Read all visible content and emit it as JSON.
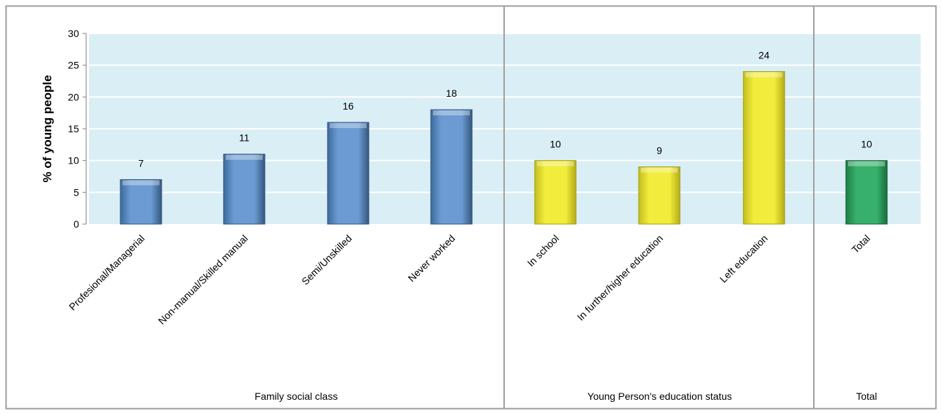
{
  "chart_data": {
    "type": "bar",
    "ylabel": "% of young people",
    "ylim": [
      0,
      30
    ],
    "yticks": [
      0,
      5,
      10,
      15,
      20,
      25,
      30
    ],
    "grid": true,
    "categories": [
      "Profesional/Managerial",
      "Non-manual/Skilled manual",
      "Semi/Unskilled",
      "Never worked",
      "In school",
      "In further/higher education",
      "Left education",
      "Total"
    ],
    "values": [
      7,
      11,
      16,
      18,
      10,
      9,
      24,
      10
    ],
    "data_labels": [
      "7",
      "11",
      "16",
      "18",
      "10",
      "9",
      "24",
      "10"
    ],
    "groups": [
      {
        "label": "Family social class",
        "categories": [
          0,
          1,
          2,
          3
        ],
        "color": "#5b8cc8"
      },
      {
        "label": "Young Person's education status",
        "categories": [
          4,
          5,
          6
        ],
        "color": "#ece634"
      },
      {
        "label": "Total",
        "categories": [
          7
        ],
        "color": "#2ea35f"
      }
    ],
    "plot_background": "#daeef5"
  }
}
